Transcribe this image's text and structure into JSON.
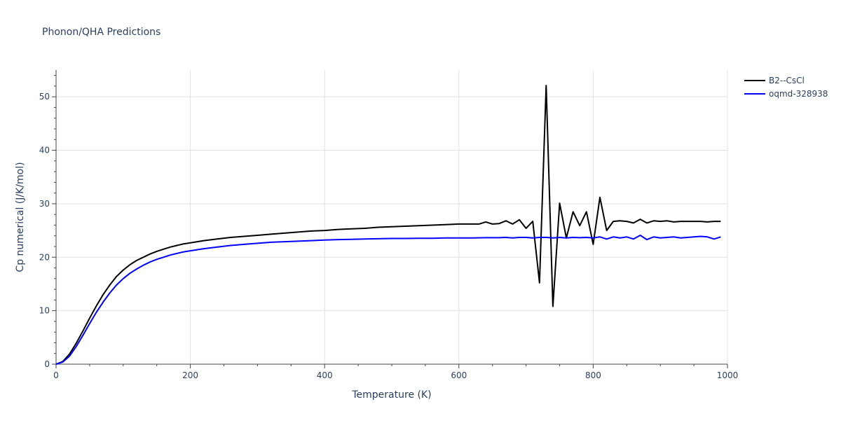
{
  "chart_data": {
    "type": "line",
    "title": "Phonon/QHA Predictions",
    "xlabel": "Temperature (K)",
    "ylabel": "Cp numerical (J/K/mol)",
    "xlim": [
      0,
      1000
    ],
    "ylim": [
      0,
      55
    ],
    "xticks": [
      0,
      200,
      400,
      600,
      800,
      1000
    ],
    "yticks": [
      0,
      10,
      20,
      30,
      40,
      50
    ],
    "grid": true,
    "legend_position": "top-right",
    "series": [
      {
        "name": "B2--CsCl",
        "color": "#000000",
        "points": [
          [
            0,
            0
          ],
          [
            10,
            0.5
          ],
          [
            20,
            1.9
          ],
          [
            30,
            3.9
          ],
          [
            40,
            6.2
          ],
          [
            50,
            8.6
          ],
          [
            60,
            10.9
          ],
          [
            70,
            13.0
          ],
          [
            80,
            14.8
          ],
          [
            90,
            16.4
          ],
          [
            100,
            17.6
          ],
          [
            110,
            18.6
          ],
          [
            120,
            19.4
          ],
          [
            130,
            20.0
          ],
          [
            140,
            20.6
          ],
          [
            150,
            21.1
          ],
          [
            160,
            21.5
          ],
          [
            170,
            21.9
          ],
          [
            180,
            22.2
          ],
          [
            190,
            22.5
          ],
          [
            200,
            22.7
          ],
          [
            220,
            23.1
          ],
          [
            240,
            23.4
          ],
          [
            260,
            23.7
          ],
          [
            280,
            23.9
          ],
          [
            300,
            24.1
          ],
          [
            320,
            24.3
          ],
          [
            340,
            24.5
          ],
          [
            360,
            24.7
          ],
          [
            380,
            24.9
          ],
          [
            400,
            25.0
          ],
          [
            420,
            25.2
          ],
          [
            440,
            25.3
          ],
          [
            460,
            25.4
          ],
          [
            480,
            25.6
          ],
          [
            500,
            25.7
          ],
          [
            520,
            25.8
          ],
          [
            540,
            25.9
          ],
          [
            560,
            26.0
          ],
          [
            580,
            26.1
          ],
          [
            600,
            26.2
          ],
          [
            620,
            26.2
          ],
          [
            630,
            26.2
          ],
          [
            640,
            26.6
          ],
          [
            650,
            26.2
          ],
          [
            660,
            26.3
          ],
          [
            670,
            26.8
          ],
          [
            680,
            26.2
          ],
          [
            690,
            27.0
          ],
          [
            700,
            25.4
          ],
          [
            710,
            26.7
          ],
          [
            720,
            15.2
          ],
          [
            730,
            52.1
          ],
          [
            740,
            10.8
          ],
          [
            750,
            30.1
          ],
          [
            760,
            23.6
          ],
          [
            770,
            28.5
          ],
          [
            780,
            25.9
          ],
          [
            790,
            28.5
          ],
          [
            800,
            22.4
          ],
          [
            810,
            31.2
          ],
          [
            820,
            25.0
          ],
          [
            830,
            26.7
          ],
          [
            840,
            26.8
          ],
          [
            850,
            26.7
          ],
          [
            860,
            26.4
          ],
          [
            870,
            27.1
          ],
          [
            880,
            26.4
          ],
          [
            890,
            26.8
          ],
          [
            900,
            26.7
          ],
          [
            910,
            26.8
          ],
          [
            920,
            26.6
          ],
          [
            930,
            26.7
          ],
          [
            940,
            26.7
          ],
          [
            950,
            26.7
          ],
          [
            960,
            26.7
          ],
          [
            970,
            26.6
          ],
          [
            980,
            26.7
          ],
          [
            990,
            26.7
          ]
        ]
      },
      {
        "name": "oqmd-328938",
        "color": "#0000ff",
        "points": [
          [
            0,
            0
          ],
          [
            10,
            0.4
          ],
          [
            20,
            1.5
          ],
          [
            30,
            3.3
          ],
          [
            40,
            5.4
          ],
          [
            50,
            7.6
          ],
          [
            60,
            9.7
          ],
          [
            70,
            11.6
          ],
          [
            80,
            13.3
          ],
          [
            90,
            14.8
          ],
          [
            100,
            16.0
          ],
          [
            110,
            17.0
          ],
          [
            120,
            17.8
          ],
          [
            130,
            18.5
          ],
          [
            140,
            19.1
          ],
          [
            150,
            19.6
          ],
          [
            160,
            20.0
          ],
          [
            170,
            20.4
          ],
          [
            180,
            20.7
          ],
          [
            190,
            21.0
          ],
          [
            200,
            21.2
          ],
          [
            220,
            21.6
          ],
          [
            240,
            21.9
          ],
          [
            260,
            22.2
          ],
          [
            280,
            22.4
          ],
          [
            300,
            22.6
          ],
          [
            320,
            22.8
          ],
          [
            340,
            22.9
          ],
          [
            360,
            23.0
          ],
          [
            380,
            23.1
          ],
          [
            400,
            23.2
          ],
          [
            420,
            23.3
          ],
          [
            440,
            23.35
          ],
          [
            460,
            23.4
          ],
          [
            480,
            23.45
          ],
          [
            500,
            23.5
          ],
          [
            520,
            23.5
          ],
          [
            540,
            23.55
          ],
          [
            560,
            23.55
          ],
          [
            580,
            23.6
          ],
          [
            600,
            23.6
          ],
          [
            620,
            23.6
          ],
          [
            640,
            23.65
          ],
          [
            660,
            23.65
          ],
          [
            670,
            23.7
          ],
          [
            680,
            23.6
          ],
          [
            690,
            23.7
          ],
          [
            700,
            23.7
          ],
          [
            710,
            23.6
          ],
          [
            720,
            23.7
          ],
          [
            730,
            23.7
          ],
          [
            740,
            23.6
          ],
          [
            750,
            23.7
          ],
          [
            760,
            23.6
          ],
          [
            770,
            23.7
          ],
          [
            780,
            23.65
          ],
          [
            790,
            23.7
          ],
          [
            800,
            23.6
          ],
          [
            810,
            23.8
          ],
          [
            820,
            23.4
          ],
          [
            830,
            23.8
          ],
          [
            840,
            23.6
          ],
          [
            850,
            23.8
          ],
          [
            860,
            23.4
          ],
          [
            870,
            24.1
          ],
          [
            880,
            23.3
          ],
          [
            890,
            23.8
          ],
          [
            900,
            23.6
          ],
          [
            910,
            23.7
          ],
          [
            920,
            23.8
          ],
          [
            930,
            23.6
          ],
          [
            940,
            23.7
          ],
          [
            950,
            23.8
          ],
          [
            960,
            23.9
          ],
          [
            970,
            23.8
          ],
          [
            980,
            23.4
          ],
          [
            990,
            23.8
          ]
        ]
      }
    ]
  }
}
